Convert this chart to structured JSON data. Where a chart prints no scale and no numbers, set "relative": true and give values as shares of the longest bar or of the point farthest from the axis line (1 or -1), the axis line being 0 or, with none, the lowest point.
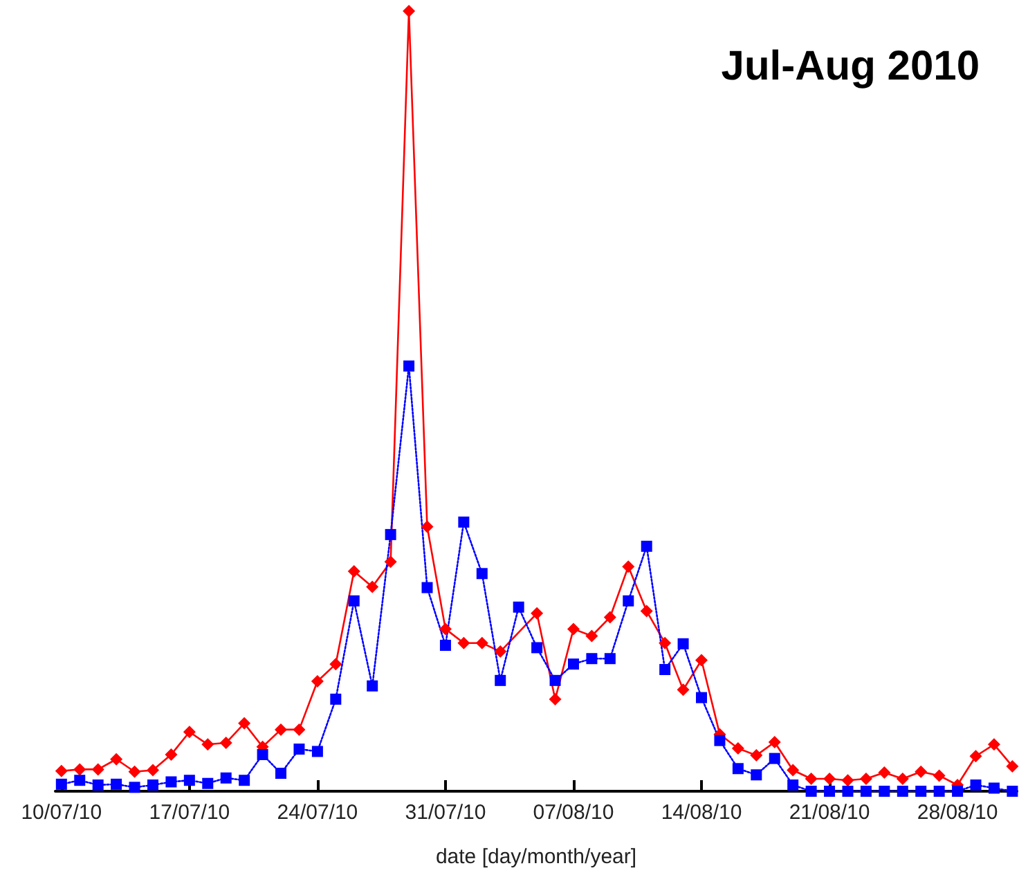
{
  "chart_data": {
    "type": "line",
    "title": "Jul-Aug 2010",
    "xlabel": "date [day/month/year]",
    "relative": true,
    "tick_labels": "x",
    "x": [
      "2010-07-10",
      "2010-07-11",
      "2010-07-12",
      "2010-07-13",
      "2010-07-14",
      "2010-07-15",
      "2010-07-16",
      "2010-07-17",
      "2010-07-18",
      "2010-07-19",
      "2010-07-20",
      "2010-07-21",
      "2010-07-22",
      "2010-07-23",
      "2010-07-24",
      "2010-07-25",
      "2010-07-26",
      "2010-07-27",
      "2010-07-28",
      "2010-07-29",
      "2010-07-30",
      "2010-07-31",
      "2010-08-01",
      "2010-08-02",
      "2010-08-03",
      "2010-08-04",
      "2010-08-05",
      "2010-08-06",
      "2010-08-07",
      "2010-08-08",
      "2010-08-09",
      "2010-08-10",
      "2010-08-11",
      "2010-08-12",
      "2010-08-13",
      "2010-08-14",
      "2010-08-15",
      "2010-08-16",
      "2010-08-17",
      "2010-08-18",
      "2010-08-19",
      "2010-08-20",
      "2010-08-21",
      "2010-08-22",
      "2010-08-23",
      "2010-08-24",
      "2010-08-25",
      "2010-08-26",
      "2010-08-27",
      "2010-08-28",
      "2010-08-29",
      "2010-08-30",
      "2010-08-31"
    ],
    "xlim": [
      "2010-07-09T16:00",
      "2010-08-31T06:00"
    ],
    "xticks": [
      {
        "value": "2010-07-10",
        "label": "10/07/10"
      },
      {
        "value": "2010-07-17",
        "label": "17/07/10"
      },
      {
        "value": "2010-07-24",
        "label": "24/07/10"
      },
      {
        "value": "2010-07-31",
        "label": "31/07/10"
      },
      {
        "value": "2010-08-07",
        "label": "07/08/10"
      },
      {
        "value": "2010-08-14",
        "label": "14/08/10"
      },
      {
        "value": "2010-08-21",
        "label": "21/08/10"
      },
      {
        "value": "2010-08-28",
        "label": "28/08/10"
      }
    ],
    "series": [
      {
        "color": "#ff0000",
        "marker": "diamond",
        "line_style": "solid",
        "values": [
          0.026,
          0.028,
          0.028,
          0.041,
          0.025,
          0.027,
          0.047,
          0.076,
          0.06,
          0.062,
          0.087,
          0.057,
          0.079,
          0.079,
          0.141,
          0.163,
          0.282,
          0.262,
          0.294,
          1.0,
          0.339,
          0.208,
          0.19,
          0.19,
          0.179,
          null,
          0.228,
          0.118,
          0.208,
          0.199,
          0.223,
          0.288,
          0.231,
          0.19,
          0.13,
          0.168,
          0.073,
          0.055,
          0.046,
          0.063,
          0.027,
          0.016,
          0.016,
          0.014,
          0.016,
          0.024,
          0.016,
          0.025,
          0.02,
          0.008,
          0.045,
          0.06,
          0.032
        ]
      },
      {
        "color": "#0000ff",
        "marker": "square",
        "line_style": "dotted",
        "values": [
          0.009,
          0.014,
          0.008,
          0.009,
          0.005,
          0.008,
          0.012,
          0.014,
          0.01,
          0.017,
          0.014,
          0.047,
          0.023,
          0.054,
          0.051,
          0.118,
          0.244,
          0.135,
          0.329,
          0.545,
          0.261,
          0.187,
          0.345,
          0.279,
          0.142,
          0.236,
          0.184,
          0.142,
          0.163,
          0.17,
          0.17,
          0.244,
          0.314,
          0.156,
          0.189,
          0.12,
          0.065,
          0.029,
          0.021,
          0.042,
          0.008,
          0,
          0,
          0,
          0,
          0,
          0,
          0,
          0,
          0,
          0.008,
          0.004,
          0
        ]
      }
    ]
  }
}
